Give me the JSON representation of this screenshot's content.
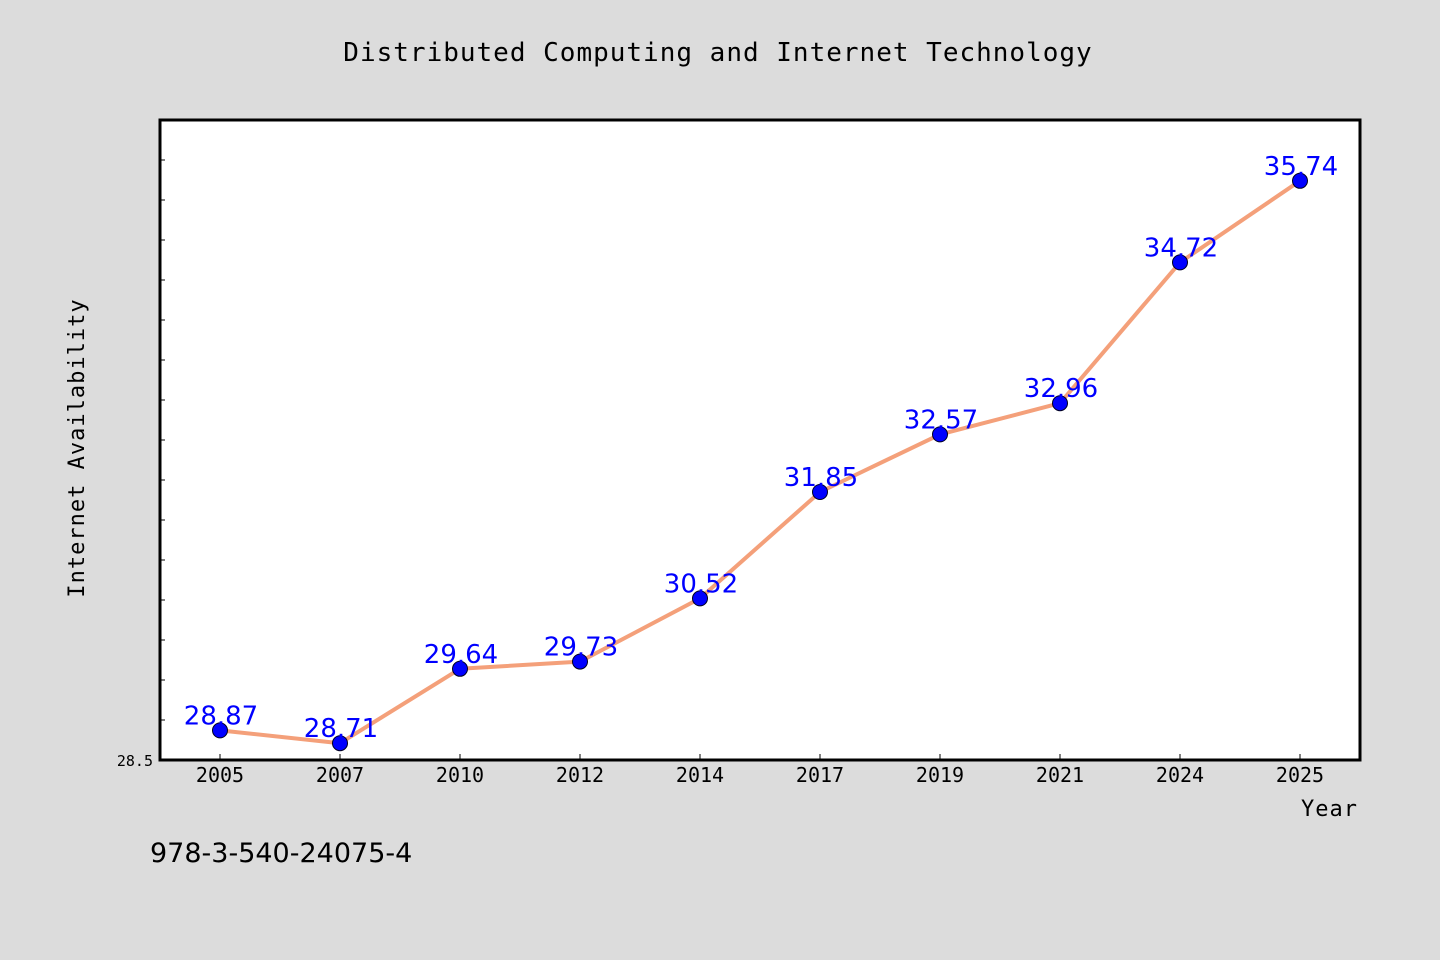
{
  "colors": {
    "background": "#dcdcdc",
    "plot_background": "#ffffff",
    "line": "#f4a07a",
    "marker": "#0000ff",
    "data_label": "#0000ff"
  },
  "chart_data": {
    "type": "line",
    "title": "Distributed Computing and Internet Technology",
    "xlabel": "Year",
    "ylabel": "Internet Availability",
    "categories": [
      "2005",
      "2007",
      "2010",
      "2012",
      "2014",
      "2017",
      "2019",
      "2021",
      "2024",
      "2025"
    ],
    "series": [
      {
        "values": [
          28.87,
          28.71,
          29.64,
          29.73,
          30.52,
          31.85,
          32.57,
          32.96,
          34.72,
          35.74
        ]
      }
    ],
    "data_labels": [
      "28.87",
      "28.71",
      "29.64",
      "29.73",
      "30.52",
      "31.85",
      "32.57",
      "32.96",
      "34.72",
      "35.74"
    ],
    "ylim": [
      28.5,
      36.5
    ],
    "yticks_labeled": [
      "28.5"
    ],
    "grid": false,
    "legend": "none"
  },
  "footer_text": "978-3-540-24075-4"
}
